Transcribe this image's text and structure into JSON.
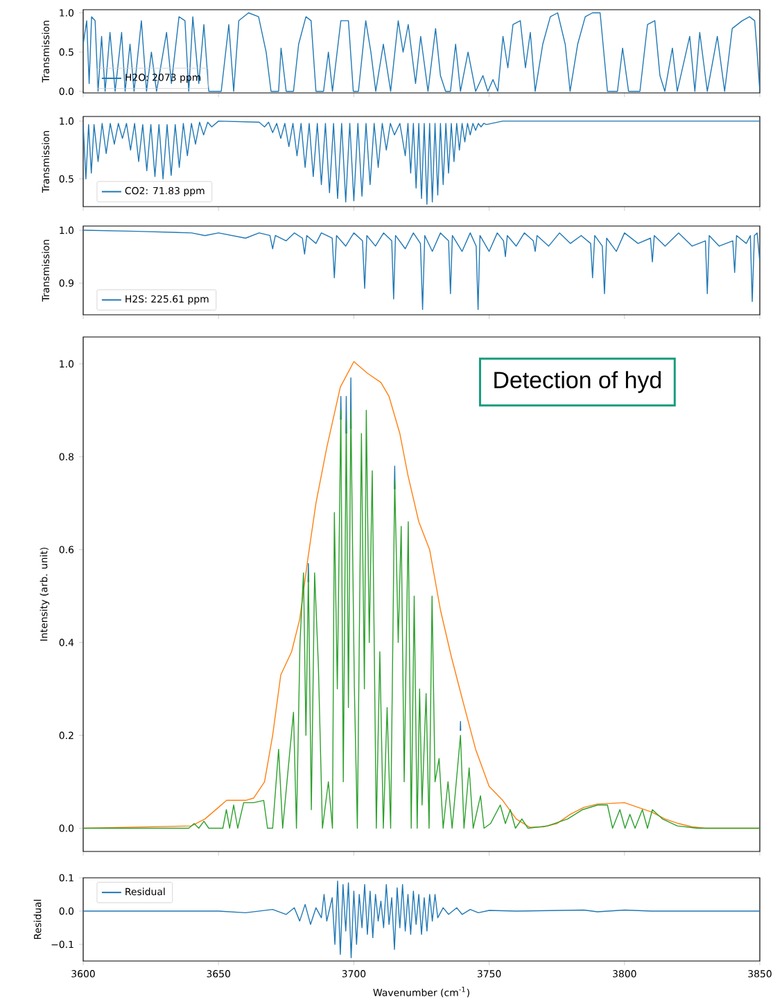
{
  "chart_data": [
    {
      "type": "line",
      "ylabel": "Transmission",
      "xlim": [
        3600,
        3850
      ],
      "ylim": [
        -0.02,
        1.04
      ],
      "xticks": [
        3600,
        3650,
        3700,
        3750,
        3800,
        3850
      ],
      "yticks": [
        {
          "value": 0,
          "label": "0.0"
        },
        {
          "value": 0.5,
          "label": "0.5"
        },
        {
          "value": 1,
          "label": "1.0"
        }
      ],
      "tick_labels": "y",
      "legend": "bottom left",
      "series": [
        {
          "name": "H2O: 2073 ppm",
          "color": "#1f77b4",
          "x": [
            3600,
            3601.3,
            3602.2,
            3603.1,
            3604.4,
            3605.5,
            3606.8,
            3608.1,
            3609.9,
            3611.8,
            3614.2,
            3615.5,
            3617.3,
            3618.8,
            3621.5,
            3623.4,
            3625.2,
            3627.1,
            3630.8,
            3632.6,
            3635.4,
            3637.6,
            3639.0,
            3640.5,
            3642.7,
            3644.6,
            3646.4,
            3651.0,
            3653.8,
            3655.6,
            3657.5,
            3661.1,
            3664.8,
            3667.6,
            3669.4,
            3672.2,
            3673.1,
            3675.0,
            3677.7,
            3679.6,
            3682.3,
            3684.2,
            3686.0,
            3688.8,
            3690.6,
            3692.1,
            3695.2,
            3698.0,
            3699.8,
            3701.7,
            3704.4,
            3706.3,
            3708.1,
            3710.9,
            3713.6,
            3716.4,
            3718.2,
            3720.1,
            3722.8,
            3724.7,
            3727.4,
            3730.2,
            3732.0,
            3733.9,
            3735.7,
            3737.6,
            3739.4,
            3742.2,
            3745.0,
            3747.7,
            3749.5,
            3751.4,
            3753.2,
            3755.1,
            3756.9,
            3758.8,
            3761.5,
            3763.4,
            3765.2,
            3767.0,
            3769.8,
            3772.6,
            3775.3,
            3778.1,
            3779.9,
            3782.7,
            3785.5,
            3788.2,
            3791.0,
            3793.7,
            3797.4,
            3799.3,
            3801.5,
            3805.7,
            3808.5,
            3811.2,
            3813.1,
            3814.9,
            3817.7,
            3819.5,
            3824.1,
            3826.0,
            3827.8,
            3830.6,
            3834.3,
            3837.0,
            3839.8,
            3843.5,
            3846.2,
            3848.1,
            3849.0,
            3850
          ],
          "values": [
            0.6,
            0.9,
            0.1,
            0.95,
            0.9,
            0.0,
            0.7,
            0.0,
            0.75,
            0.0,
            0.75,
            0.0,
            0.6,
            0.0,
            0.9,
            0.0,
            0.5,
            0.0,
            0.75,
            0.1,
            0.95,
            0.9,
            0.0,
            0.95,
            0.1,
            0.85,
            0.0,
            0.0,
            0.85,
            0.0,
            0.9,
            1.0,
            0.95,
            0.5,
            0.0,
            0.0,
            0.55,
            0.0,
            0.0,
            0.6,
            0.95,
            0.9,
            0.0,
            0.0,
            0.5,
            0.0,
            0.9,
            0.9,
            0.0,
            0.0,
            0.9,
            0.5,
            0.0,
            0.6,
            0.0,
            0.9,
            0.5,
            0.85,
            0.1,
            0.7,
            0.0,
            0.8,
            0.2,
            0.0,
            0.0,
            0.6,
            0.0,
            0.5,
            0.0,
            0.2,
            0.0,
            0.15,
            0.0,
            0.7,
            0.3,
            0.85,
            0.9,
            0.3,
            0.75,
            0.0,
            0.6,
            0.95,
            1.0,
            0.6,
            0.0,
            0.6,
            0.95,
            1.0,
            1.0,
            0.0,
            0.0,
            0.55,
            0.0,
            0.0,
            0.85,
            0.9,
            0.2,
            0.0,
            0.55,
            0.0,
            0.7,
            0.0,
            0.75,
            0.0,
            0.7,
            0.0,
            0.8,
            0.9,
            0.95,
            0.9,
            0.5,
            0.0
          ]
        }
      ]
    },
    {
      "type": "line",
      "ylabel": "Transmission",
      "xlim": [
        3600,
        3850
      ],
      "ylim": [
        0.26,
        1.04
      ],
      "xticks": [
        3600,
        3650,
        3700,
        3750,
        3800,
        3850
      ],
      "yticks": [
        {
          "value": 0.5,
          "label": "0.5"
        },
        {
          "value": 1,
          "label": "1.0"
        }
      ],
      "tick_labels": "y",
      "legend": "bottom left",
      "series": [
        {
          "name": "CO2: 71.83 ppm",
          "color": "#1f77b4",
          "x": [
            3600,
            3601,
            3602,
            3603,
            3604,
            3605.5,
            3607,
            3608.5,
            3610,
            3611.5,
            3613,
            3614.5,
            3616,
            3617.5,
            3619,
            3620.5,
            3622,
            3623.5,
            3625,
            3626.5,
            3628,
            3629.5,
            3631,
            3632.5,
            3634,
            3635.5,
            3637,
            3638.5,
            3640,
            3641.5,
            3643,
            3644.5,
            3646,
            3647.5,
            3650,
            3665,
            3667,
            3668.5,
            3670,
            3671.5,
            3673,
            3674.5,
            3676,
            3677.5,
            3679,
            3680.5,
            3682,
            3683.5,
            3685,
            3686.5,
            3688,
            3689.5,
            3691,
            3692.5,
            3694,
            3695.5,
            3697,
            3698.5,
            3700,
            3701.5,
            3703,
            3704.5,
            3706,
            3707.5,
            3709,
            3710.5,
            3712,
            3713.5,
            3715,
            3717,
            3719,
            3720,
            3721,
            3722,
            3723,
            3724,
            3725,
            3726,
            3727,
            3728,
            3729,
            3730,
            3731,
            3732,
            3733,
            3734,
            3735,
            3736,
            3737,
            3738,
            3739,
            3740,
            3741,
            3742,
            3743,
            3744,
            3745,
            3746,
            3747,
            3748,
            3749,
            3755,
            3850
          ],
          "values": [
            0.97,
            0.5,
            0.97,
            0.55,
            0.97,
            0.65,
            0.98,
            0.72,
            0.98,
            0.8,
            0.98,
            0.85,
            0.98,
            0.75,
            0.98,
            0.65,
            0.97,
            0.57,
            0.97,
            0.52,
            0.97,
            0.5,
            0.97,
            0.53,
            0.97,
            0.6,
            0.98,
            0.7,
            0.98,
            0.8,
            0.99,
            0.88,
            0.99,
            0.95,
            1.0,
            0.99,
            0.95,
            0.99,
            0.9,
            0.98,
            0.85,
            0.98,
            0.78,
            0.98,
            0.7,
            0.98,
            0.6,
            0.98,
            0.52,
            0.98,
            0.45,
            0.98,
            0.38,
            0.98,
            0.33,
            0.98,
            0.3,
            0.98,
            0.31,
            0.98,
            0.35,
            0.98,
            0.45,
            0.98,
            0.6,
            0.98,
            0.75,
            0.98,
            0.88,
            0.98,
            0.7,
            0.98,
            0.55,
            0.98,
            0.42,
            0.98,
            0.33,
            0.98,
            0.28,
            0.98,
            0.3,
            0.98,
            0.36,
            0.98,
            0.45,
            0.98,
            0.55,
            0.98,
            0.65,
            0.98,
            0.75,
            0.98,
            0.82,
            0.98,
            0.88,
            0.98,
            0.92,
            0.98,
            0.95,
            0.98,
            0.97,
            1.0,
            1.0
          ]
        }
      ]
    },
    {
      "type": "line",
      "ylabel": "Transmission",
      "xlim": [
        3600,
        3850
      ],
      "ylim": [
        0.84,
        1.008
      ],
      "xticks": [
        3600,
        3650,
        3700,
        3750,
        3800,
        3850
      ],
      "yticks": [
        {
          "value": 0.9,
          "label": "0.9"
        },
        {
          "value": 1,
          "label": "1.0"
        }
      ],
      "tick_labels": "y",
      "legend": "bottom left",
      "series": [
        {
          "name": "H2S: 225.61 ppm",
          "color": "#1f77b4",
          "x": [
            3600,
            3620,
            3640,
            3645,
            3650,
            3660,
            3665,
            3669,
            3670,
            3671,
            3675,
            3678,
            3681,
            3681.8,
            3682.6,
            3686,
            3688,
            3692,
            3692.8,
            3693.6,
            3697,
            3700,
            3703.2,
            3704,
            3704.8,
            3708,
            3711,
            3714,
            3714.7,
            3715.4,
            3719,
            3722,
            3724.6,
            3725.4,
            3726.2,
            3729,
            3732,
            3735,
            3735.7,
            3736.4,
            3740,
            3743,
            3745.2,
            3745.9,
            3746.6,
            3750,
            3753,
            3755.3,
            3756,
            3756.7,
            3760,
            3763,
            3766.3,
            3767,
            3767.7,
            3772,
            3776,
            3780,
            3784,
            3787.5,
            3788.2,
            3789,
            3791.8,
            3792.6,
            3793.4,
            3797,
            3800,
            3805,
            3809.6,
            3810.3,
            3811,
            3815,
            3820,
            3825,
            3829.9,
            3830.6,
            3831.3,
            3835,
            3840,
            3840.7,
            3841.4,
            3845,
            3846.5,
            3847.2,
            3848,
            3849,
            3850
          ],
          "values": [
            1.0,
            0.998,
            0.995,
            0.99,
            0.995,
            0.985,
            0.995,
            0.99,
            0.965,
            0.99,
            0.98,
            0.995,
            0.985,
            0.955,
            0.99,
            0.975,
            0.995,
            0.985,
            0.91,
            0.99,
            0.97,
            0.995,
            0.98,
            0.89,
            0.99,
            0.97,
            0.995,
            0.98,
            0.87,
            0.99,
            0.965,
            0.995,
            0.975,
            0.85,
            0.99,
            0.96,
            0.995,
            0.98,
            0.88,
            0.99,
            0.96,
            0.995,
            0.97,
            0.85,
            0.99,
            0.96,
            0.995,
            0.98,
            0.95,
            0.99,
            0.97,
            0.995,
            0.98,
            0.96,
            0.99,
            0.97,
            0.995,
            0.975,
            0.99,
            0.975,
            0.91,
            0.99,
            0.97,
            0.88,
            0.985,
            0.96,
            0.995,
            0.975,
            0.985,
            0.94,
            0.99,
            0.97,
            0.995,
            0.97,
            0.98,
            0.88,
            0.99,
            0.97,
            0.98,
            0.92,
            0.99,
            0.975,
            0.99,
            0.865,
            0.99,
            0.995,
            0.94
          ]
        }
      ]
    },
    {
      "type": "line",
      "ylabel": "Intensity (arb. unit)",
      "xlim": [
        3600,
        3850
      ],
      "ylim": [
        -0.05,
        1.058
      ],
      "xticks": [
        3600,
        3650,
        3700,
        3750,
        3800,
        3850
      ],
      "yticks": [
        {
          "value": 0,
          "label": "0.0"
        },
        {
          "value": 0.2,
          "label": "0.2"
        },
        {
          "value": 0.4,
          "label": "0.4"
        },
        {
          "value": 0.6,
          "label": "0.6"
        },
        {
          "value": 0.8,
          "label": "0.8"
        },
        {
          "value": 1,
          "label": "1.0"
        }
      ],
      "tick_labels": "y",
      "annotations": [
        "Detection of hyd"
      ],
      "series": [
        {
          "color": "#1f77b4",
          "x": [
            3683.05,
            3683.2,
            3683.35,
            3684,
            3695.05,
            3695.2,
            3695.35,
            3696,
            3697.05,
            3697.2,
            3697.35,
            3698.3,
            3698.75,
            3698.9,
            3699.05,
            3700,
            3714.95,
            3715.1,
            3715.25,
            3716,
            3739.3,
            3739.4,
            3739.5
          ],
          "values": [
            0.53,
            0.57,
            0.53,
            null,
            0.88,
            0.93,
            0.88,
            null,
            0.85,
            0.93,
            0.85,
            null,
            0.86,
            0.97,
            0.86,
            null,
            0.73,
            0.78,
            0.73,
            null,
            0.21,
            0.23,
            0.21
          ]
        },
        {
          "color": "#ff7f0e",
          "x": [
            3600,
            3640,
            3645,
            3650,
            3653,
            3660,
            3663,
            3667,
            3670,
            3673,
            3677,
            3680,
            3683,
            3686,
            3690,
            3695,
            3700,
            3705,
            3710,
            3713,
            3717,
            3720,
            3724,
            3728,
            3732,
            3736,
            3740,
            3745,
            3750,
            3755,
            3760,
            3765,
            3770,
            3775,
            3780,
            3785,
            3790,
            3800,
            3805,
            3810,
            3815,
            3820,
            3825,
            3830,
            3850
          ],
          "values": [
            0,
            0.005,
            0.02,
            0.045,
            0.06,
            0.06,
            0.065,
            0.1,
            0.2,
            0.33,
            0.38,
            0.45,
            0.58,
            0.7,
            0.82,
            0.95,
            1.005,
            0.98,
            0.96,
            0.93,
            0.85,
            0.76,
            0.66,
            0.6,
            0.47,
            0.37,
            0.28,
            0.17,
            0.09,
            0.06,
            0.02,
            0.002,
            0.003,
            0.01,
            0.03,
            0.045,
            0.052,
            0.055,
            0.045,
            0.035,
            0.02,
            0.01,
            0.003,
            0,
            0
          ]
        },
        {
          "color": "#2ca02c",
          "x": [
            3600,
            3639,
            3641,
            3642.7,
            3644.6,
            3646.4,
            3651.6,
            3652.9,
            3654.1,
            3655.6,
            3657.1,
            3659.3,
            3663,
            3666.7,
            3668.1,
            3670,
            3672.2,
            3673.7,
            3677.7,
            3678.8,
            3680.1,
            3681.4,
            3682.3,
            3683.2,
            3684.3,
            3685.5,
            3686.9,
            3688.4,
            3690.6,
            3692.1,
            3692.8,
            3693.9,
            3695.2,
            3696.1,
            3697.2,
            3698,
            3698.9,
            3700.2,
            3701.3,
            3702.8,
            3703.9,
            3704.6,
            3705.7,
            3706.8,
            3708.3,
            3709.6,
            3710.9,
            3712.3,
            3713.6,
            3715.1,
            3716.4,
            3717.5,
            3718.6,
            3720.1,
            3721.2,
            3722.3,
            3723.4,
            3724.3,
            3725.2,
            3726.7,
            3727.8,
            3728.9,
            3730,
            3731.5,
            3733,
            3734.8,
            3736.3,
            3739.4,
            3740.7,
            3742.6,
            3744.1,
            3746.8,
            3748.1,
            3750.5,
            3754.1,
            3756,
            3757.8,
            3759.7,
            3762.1,
            3764.3,
            3771.6,
            3779,
            3784.5,
            3790.1,
            3793.7,
            3795.6,
            3798.3,
            3800.2,
            3802,
            3803.9,
            3806.6,
            3808.5,
            3810.3,
            3814,
            3819.5,
            3826.9,
            3850
          ],
          "values": [
            0,
            0,
            0.01,
            0,
            0.015,
            0,
            0,
            0.04,
            0,
            0.05,
            0,
            0.055,
            0.055,
            0.06,
            0,
            0,
            0.17,
            0,
            0.25,
            0,
            0.4,
            0.55,
            0.2,
            0.55,
            0.04,
            0.55,
            0.35,
            0,
            0.1,
            0,
            0.68,
            0.3,
            0.9,
            0.1,
            0.88,
            0.26,
            0.9,
            0.3,
            0,
            0.85,
            0.3,
            0.9,
            0.4,
            0.77,
            0,
            0.38,
            0,
            0.26,
            0,
            0.75,
            0.4,
            0.65,
            0.1,
            0.66,
            0,
            0.5,
            0,
            0.3,
            0.05,
            0.29,
            0,
            0.5,
            0.1,
            0.15,
            0,
            0.1,
            0,
            0.2,
            0,
            0.13,
            0,
            0.07,
            0,
            0.01,
            0.05,
            0.01,
            0.04,
            0,
            0.02,
            0,
            0.005,
            0.02,
            0.04,
            0.05,
            0.05,
            0,
            0.04,
            0,
            0.03,
            0,
            0.04,
            0,
            0.04,
            0.02,
            0.005,
            0,
            0
          ]
        }
      ]
    },
    {
      "type": "line",
      "ylabel": "Residual",
      "xlabel": "Wavenumber (cm$^{-1}$)",
      "xlim": [
        3600,
        3850
      ],
      "ylim": [
        -0.15,
        0.1
      ],
      "xticks": [
        3600,
        3650,
        3700,
        3750,
        3800,
        3850
      ],
      "yticks": [
        {
          "value": -0.1,
          "label": "−0.1"
        },
        {
          "value": 0,
          "label": "0.0"
        },
        {
          "value": 0.1,
          "label": "0.1"
        }
      ],
      "legend": "top left",
      "series": [
        {
          "name": "Residual",
          "color": "#1f77b4",
          "x": [
            3600,
            3650,
            3660,
            3670,
            3675,
            3678,
            3680,
            3682,
            3684,
            3686,
            3688,
            3689,
            3690,
            3692,
            3693,
            3694,
            3695,
            3696,
            3697,
            3698,
            3699,
            3700,
            3701,
            3702,
            3703,
            3704,
            3705,
            3706,
            3707,
            3708,
            3709,
            3710,
            3711,
            3712,
            3713,
            3714,
            3715,
            3716,
            3717,
            3718,
            3719,
            3720,
            3721,
            3722,
            3723,
            3724,
            3725,
            3726,
            3727,
            3728,
            3729,
            3730,
            3731,
            3733,
            3735,
            3738,
            3740,
            3743,
            3746,
            3750,
            3760,
            3785,
            3790,
            3800,
            3810,
            3850
          ],
          "values": [
            0,
            0,
            -0.005,
            0.005,
            -0.01,
            0.01,
            -0.03,
            0.02,
            -0.04,
            0.01,
            -0.02,
            0.05,
            -0.03,
            0.04,
            -0.1,
            0.09,
            -0.13,
            0.08,
            -0.06,
            0.085,
            -0.14,
            0.06,
            -0.1,
            0.05,
            -0.05,
            0.08,
            -0.07,
            0.06,
            -0.08,
            0.05,
            -0.03,
            0.03,
            -0.05,
            0.08,
            -0.04,
            0.04,
            -0.115,
            0.07,
            -0.05,
            0.08,
            -0.06,
            0.05,
            -0.07,
            0.06,
            -0.04,
            0.05,
            -0.07,
            0.04,
            -0.06,
            0.05,
            -0.03,
            0.05,
            -0.02,
            0.01,
            -0.01,
            0.01,
            -0.01,
            0.005,
            -0.005,
            0.002,
            0,
            0.003,
            -0.002,
            0.003,
            0,
            0
          ]
        }
      ]
    }
  ]
}
